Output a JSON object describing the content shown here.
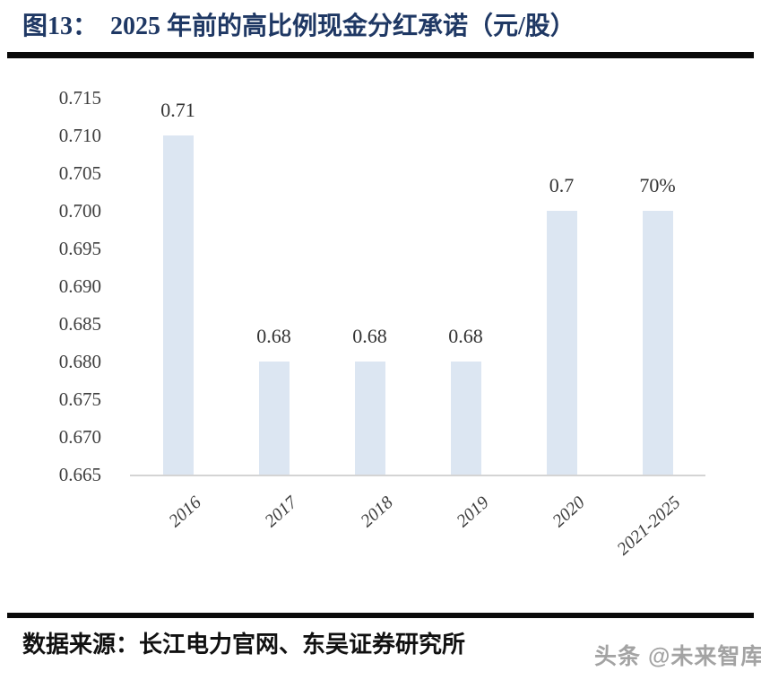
{
  "header": {
    "figure_label": "图13：",
    "figure_title": "2025 年前的高比例现金分红承诺（元/股）"
  },
  "footer": {
    "source_text": "数据来源：长江电力官网、东吴证券研究所",
    "watermark": "头条 @未来智库"
  },
  "colors": {
    "title_navy": "#1f3864",
    "bar_fill": "#dce6f2",
    "axis_line": "#d4d4d4",
    "tick_label": "#3d3d3d",
    "divider": "#0a0a0a",
    "watermark_gray": "#a3a3a3"
  },
  "chart_data": {
    "type": "bar",
    "title": "2025 年前的高比例现金分红承诺（元/股）",
    "categories": [
      "2016",
      "2017",
      "2018",
      "2019",
      "2020",
      "2021-2025"
    ],
    "values": [
      0.71,
      0.68,
      0.68,
      0.68,
      0.7,
      0.7
    ],
    "data_labels": [
      "0.71",
      "0.68",
      "0.68",
      "0.68",
      "0.7",
      "70%"
    ],
    "xlabel": "",
    "ylabel": "",
    "ylim": [
      0.665,
      0.715
    ],
    "ytick_step": 0.005,
    "yticks": [
      "0.715",
      "0.710",
      "0.705",
      "0.700",
      "0.695",
      "0.690",
      "0.685",
      "0.680",
      "0.675",
      "0.670",
      "0.665"
    ],
    "grid": false,
    "legend": false,
    "bar_color": "#dce6f2"
  }
}
